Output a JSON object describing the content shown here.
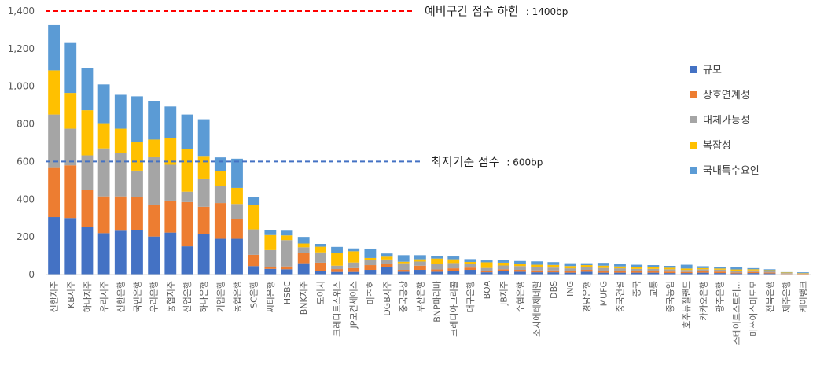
{
  "chart_data": {
    "type": "bar",
    "stacked": true,
    "title": "",
    "xlabel": "",
    "ylabel": "",
    "ylim": [
      0,
      1400
    ],
    "yticks": [
      "0",
      "200",
      "400",
      "600",
      "800",
      "1,000",
      "1,200",
      "1,400"
    ],
    "categories": [
      "신한지주",
      "KB지주",
      "하나지주",
      "우리지주",
      "신한은행",
      "국민은행",
      "우리은행",
      "농협지주",
      "산업은행",
      "하나은행",
      "기업은행",
      "농협은행",
      "SC은행",
      "씨티은행",
      "HSBC",
      "BNK지주",
      "도이치",
      "크레디트스위스",
      "JP모건체이스",
      "미즈호",
      "DGB지주",
      "중국공상",
      "부산은행",
      "BNP파리바",
      "크레디아그리콜",
      "대구은행",
      "BOA",
      "JB지주",
      "수협은행",
      "소시에테제네랄",
      "DBS",
      "ING",
      "경남은행",
      "MUFG",
      "중국건설",
      "중국",
      "교통",
      "중국농업",
      "호주뉴질랜드",
      "카카오은행",
      "광주은행",
      "스테이트스트리...",
      "미쓰이스미토모",
      "전북은행",
      "제주은행",
      "케이뱅크"
    ],
    "series": [
      {
        "name": "규모",
        "color": "#4472C4",
        "values": [
          305,
          300,
          253,
          220,
          233,
          237,
          202,
          223,
          150,
          215,
          190,
          190,
          45,
          30,
          28,
          60,
          18,
          14,
          14,
          25,
          40,
          15,
          25,
          15,
          18,
          25,
          12,
          18,
          15,
          12,
          12,
          10,
          15,
          10,
          10,
          10,
          10,
          8,
          8,
          10,
          8,
          6,
          8,
          6,
          3,
          2
        ]
      },
      {
        "name": "상호연계성",
        "color": "#ED7D31",
        "values": [
          265,
          280,
          195,
          195,
          182,
          175,
          170,
          170,
          235,
          145,
          190,
          105,
          60,
          10,
          15,
          55,
          45,
          15,
          20,
          25,
          15,
          10,
          22,
          12,
          15,
          12,
          8,
          10,
          10,
          10,
          10,
          8,
          10,
          10,
          8,
          8,
          8,
          8,
          6,
          8,
          8,
          5,
          6,
          5,
          2,
          2
        ]
      },
      {
        "name": "대체가능성",
        "color": "#A5A5A5",
        "values": [
          280,
          195,
          185,
          255,
          230,
          140,
          255,
          190,
          55,
          150,
          90,
          80,
          135,
          90,
          140,
          30,
          55,
          18,
          30,
          28,
          25,
          35,
          22,
          30,
          28,
          20,
          15,
          20,
          20,
          18,
          15,
          15,
          15,
          15,
          15,
          12,
          12,
          12,
          10,
          10,
          10,
          10,
          8,
          8,
          3,
          2
        ]
      },
      {
        "name": "복잡성",
        "color": "#FFC000",
        "values": [
          235,
          190,
          240,
          130,
          130,
          150,
          90,
          140,
          225,
          120,
          80,
          85,
          130,
          80,
          25,
          20,
          30,
          70,
          60,
          10,
          15,
          8,
          12,
          28,
          20,
          10,
          30,
          15,
          12,
          12,
          14,
          12,
          10,
          12,
          10,
          10,
          8,
          8,
          8,
          6,
          6,
          6,
          6,
          4,
          3,
          2
        ]
      },
      {
        "name": "국내특수요인",
        "color": "#5B9BD5",
        "values": [
          240,
          265,
          225,
          210,
          180,
          245,
          205,
          170,
          185,
          195,
          72,
          155,
          40,
          25,
          25,
          35,
          15,
          30,
          15,
          50,
          17,
          35,
          22,
          15,
          15,
          15,
          10,
          15,
          15,
          18,
          15,
          15,
          10,
          15,
          15,
          12,
          12,
          10,
          20,
          10,
          6,
          13,
          6,
          5,
          2,
          4
        ]
      }
    ],
    "reference_lines": [
      {
        "value": 1400,
        "label": "예비구간 점수 하한",
        "suffix": ": 1400bp",
        "color": "#FF0000"
      },
      {
        "value": 600,
        "label": "최저기준 점수",
        "suffix": ": 600bp",
        "color": "#4472C4"
      }
    ],
    "legend_position": "right"
  }
}
